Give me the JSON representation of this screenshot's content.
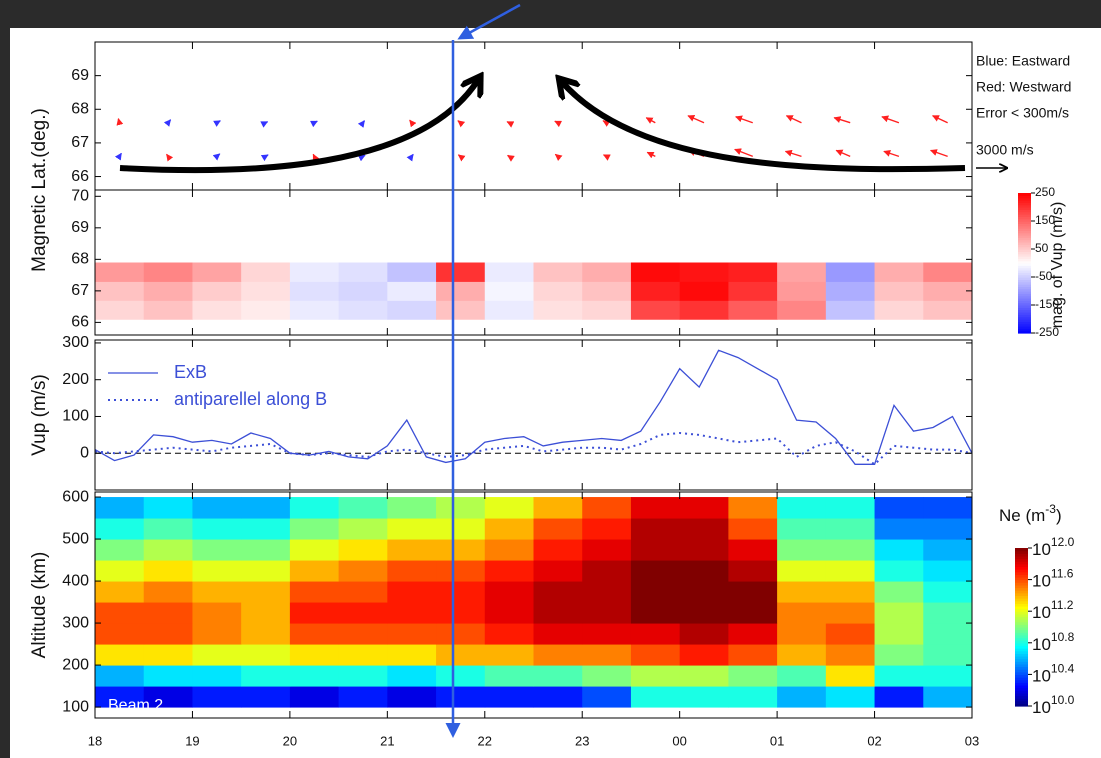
{
  "chart_data": [
    {
      "type": "quiver",
      "ylabel": "Magnetic Lat.(deg.)",
      "xlim": [
        18,
        27
      ],
      "ylim": [
        65.6,
        70
      ],
      "yticks": [
        66,
        67,
        68,
        69
      ],
      "x": [
        18.25,
        18.75,
        19.25,
        19.75,
        20.25,
        20.75,
        21.25,
        21.75,
        22.25,
        22.75,
        23.25,
        23.75,
        24.25,
        24.75,
        25.25,
        25.75,
        26.25,
        26.75
      ],
      "lats": [
        66.6,
        67.6
      ],
      "u": [
        [
          200,
          -150,
          300,
          250,
          -100,
          200,
          150,
          -200,
          -150,
          -250,
          -300,
          -800,
          -1500,
          -1800,
          -1600,
          -1400,
          -1500,
          -1700
        ],
        [
          -100,
          250,
          350,
          200,
          300,
          150,
          -200,
          -250,
          -200,
          -300,
          -350,
          -900,
          -1600,
          -1700,
          -1500,
          -1600,
          -1700,
          -1500
        ]
      ],
      "v": [
        [
          300,
          200,
          250,
          150,
          200,
          100,
          200,
          150,
          100,
          200,
          150,
          400,
          600,
          700,
          500,
          600,
          500,
          600
        ],
        [
          400,
          300,
          200,
          100,
          150,
          200,
          250,
          200,
          100,
          150,
          200,
          500,
          700,
          600,
          700,
          500,
          600,
          700
        ]
      ],
      "east_color": "#3434ff",
      "west_color": "#ff2020",
      "legend": [
        "Blue: Eastward",
        "Red: Westward",
        "Error < 300m/s"
      ],
      "reference_vector": {
        "value": 3000,
        "label": "3000 m/s"
      }
    },
    {
      "type": "heatmap",
      "colormap": "bwr",
      "xlim": [
        18,
        27
      ],
      "ylim": [
        65.6,
        70.2
      ],
      "yticks": [
        66,
        67,
        68,
        69,
        70
      ],
      "time_bins": [
        18,
        18.5,
        19,
        19.5,
        20,
        20.5,
        21,
        21.5,
        22,
        22.5,
        23,
        23.5,
        24,
        24.5,
        25,
        25.5,
        26,
        26.5,
        27
      ],
      "y_bins": [
        66.1,
        66.7,
        67.3,
        67.9
      ],
      "values": [
        [
          40,
          60,
          30,
          20,
          -20,
          -30,
          -40,
          60,
          -20,
          30,
          40,
          180,
          200,
          160,
          120,
          -60,
          40,
          60
        ],
        [
          60,
          80,
          50,
          30,
          -30,
          -40,
          -20,
          80,
          -10,
          40,
          60,
          220,
          240,
          200,
          100,
          -80,
          60,
          80
        ],
        [
          100,
          120,
          90,
          40,
          -20,
          -30,
          -60,
          200,
          -20,
          60,
          80,
          240,
          230,
          220,
          90,
          -100,
          80,
          120
        ]
      ],
      "clim": [
        -250,
        250
      ],
      "colorbar_ticks": [
        250,
        150,
        50,
        -50,
        -150,
        -250
      ],
      "colorbar_label": "mag. of Vup (m/s)"
    },
    {
      "type": "line",
      "ylabel": "Vup (m/s)",
      "xlim": [
        18,
        27
      ],
      "ylim": [
        -100,
        308
      ],
      "yticks": [
        0,
        100,
        200,
        300
      ],
      "reference_line": 0,
      "x": [
        18.0,
        18.2,
        18.4,
        18.6,
        18.8,
        19.0,
        19.2,
        19.4,
        19.6,
        19.8,
        20.0,
        20.2,
        20.4,
        20.6,
        20.8,
        21.0,
        21.2,
        21.4,
        21.6,
        21.8,
        22.0,
        22.2,
        22.4,
        22.6,
        22.8,
        23.0,
        23.2,
        23.4,
        23.6,
        23.8,
        24.0,
        24.2,
        24.4,
        24.6,
        24.8,
        25.0,
        25.2,
        25.4,
        25.6,
        25.8,
        26.0,
        26.2,
        26.4,
        26.6,
        26.8,
        27.0
      ],
      "series": [
        {
          "name": "ExB",
          "color": "#3c4fd6",
          "style": "solid",
          "values": [
            10,
            -20,
            -5,
            50,
            45,
            30,
            35,
            25,
            55,
            40,
            0,
            -5,
            5,
            -10,
            -15,
            20,
            90,
            -10,
            -25,
            -15,
            30,
            40,
            45,
            20,
            30,
            35,
            40,
            35,
            60,
            140,
            230,
            180,
            280,
            260,
            230,
            200,
            90,
            85,
            40,
            -30,
            -30,
            130,
            60,
            70,
            100,
            0
          ]
        },
        {
          "name": "antiparellel along B",
          "color": "#3c4fd6",
          "style": "dotted",
          "values": [
            5,
            0,
            5,
            10,
            15,
            10,
            5,
            15,
            20,
            25,
            0,
            -5,
            0,
            -5,
            -10,
            5,
            10,
            0,
            -10,
            -5,
            10,
            15,
            20,
            5,
            10,
            15,
            15,
            10,
            25,
            50,
            55,
            50,
            40,
            30,
            35,
            40,
            -10,
            20,
            30,
            5,
            -30,
            20,
            15,
            10,
            10,
            0
          ]
        }
      ]
    },
    {
      "type": "heatmap",
      "colormap": "jet",
      "ylabel": "Altitude (km)",
      "annotation": "Beam 2",
      "xlim": [
        18,
        27
      ],
      "ylim": [
        74,
        612
      ],
      "yticks": [
        100,
        200,
        300,
        400,
        500,
        600
      ],
      "xticks": [
        18,
        19,
        20,
        21,
        22,
        23,
        {
          "value": 24,
          "label": "00"
        },
        {
          "value": 25,
          "label": "01"
        },
        {
          "value": 26,
          "label": "02"
        },
        {
          "value": 27,
          "label": "03"
        }
      ],
      "time_bins": [
        18,
        18.5,
        19,
        19.5,
        20,
        20.5,
        21,
        21.5,
        22,
        22.5,
        23,
        23.5,
        24,
        24.5,
        25,
        25.5,
        26,
        26.5,
        27
      ],
      "y_bins": [
        100,
        150,
        200,
        250,
        300,
        350,
        400,
        450,
        500,
        550,
        600
      ],
      "values": [
        [
          10.3,
          10.2,
          10.3,
          10.3,
          10.2,
          10.3,
          10.2,
          10.3,
          10.3,
          10.3,
          10.4,
          10.8,
          10.8,
          10.8,
          10.6,
          10.7,
          10.3,
          10.6
        ],
        [
          10.6,
          10.7,
          10.7,
          10.8,
          10.8,
          10.8,
          10.7,
          10.8,
          10.9,
          10.9,
          11.0,
          11.1,
          11.1,
          11.0,
          10.9,
          11.3,
          10.8,
          10.8
        ],
        [
          11.3,
          11.3,
          11.2,
          11.2,
          11.3,
          11.3,
          11.3,
          11.4,
          11.4,
          11.5,
          11.5,
          11.6,
          11.7,
          11.6,
          11.4,
          11.5,
          11.0,
          10.9
        ],
        [
          11.6,
          11.6,
          11.5,
          11.4,
          11.6,
          11.6,
          11.6,
          11.6,
          11.7,
          11.8,
          11.8,
          11.8,
          11.9,
          11.8,
          11.5,
          11.6,
          11.1,
          10.9
        ],
        [
          11.6,
          11.6,
          11.5,
          11.4,
          11.7,
          11.7,
          11.7,
          11.7,
          11.8,
          11.9,
          11.9,
          12.0,
          12.0,
          12.0,
          11.5,
          11.5,
          11.1,
          10.9
        ],
        [
          11.4,
          11.5,
          11.4,
          11.4,
          11.6,
          11.6,
          11.7,
          11.7,
          11.8,
          11.9,
          11.9,
          12.0,
          12.0,
          12.0,
          11.4,
          11.4,
          11.0,
          10.8
        ],
        [
          11.2,
          11.3,
          11.2,
          11.2,
          11.4,
          11.5,
          11.6,
          11.6,
          11.7,
          11.8,
          11.9,
          12.0,
          12.0,
          11.9,
          11.2,
          11.2,
          10.8,
          10.7
        ],
        [
          11.0,
          11.1,
          11.0,
          11.0,
          11.2,
          11.3,
          11.4,
          11.4,
          11.5,
          11.7,
          11.8,
          11.9,
          11.9,
          11.8,
          11.0,
          11.0,
          10.7,
          10.6
        ],
        [
          10.8,
          10.9,
          10.8,
          10.8,
          11.0,
          11.1,
          11.2,
          11.2,
          11.4,
          11.6,
          11.7,
          11.9,
          11.9,
          11.6,
          10.9,
          10.9,
          10.5,
          10.5
        ],
        [
          10.6,
          10.7,
          10.6,
          10.6,
          10.8,
          10.9,
          11.0,
          11.1,
          11.2,
          11.4,
          11.6,
          11.8,
          11.8,
          11.5,
          10.8,
          10.8,
          10.4,
          10.4
        ]
      ],
      "clim": [
        10,
        12
      ],
      "colorbar_ticks": [
        {
          "value": 12.0,
          "label": "10",
          "sup": "12.0"
        },
        {
          "value": 11.6,
          "label": "10",
          "sup": "11.6"
        },
        {
          "value": 11.2,
          "label": "10",
          "sup": "11.2"
        },
        {
          "value": 10.8,
          "label": "10",
          "sup": "10.8"
        },
        {
          "value": 10.4,
          "label": "10",
          "sup": "10.4"
        },
        {
          "value": 10.0,
          "label": "10",
          "sup": "10.0"
        }
      ],
      "colorbar_title": {
        "text": "Ne (m",
        "sup": "-3",
        "tail": ")"
      }
    }
  ]
}
